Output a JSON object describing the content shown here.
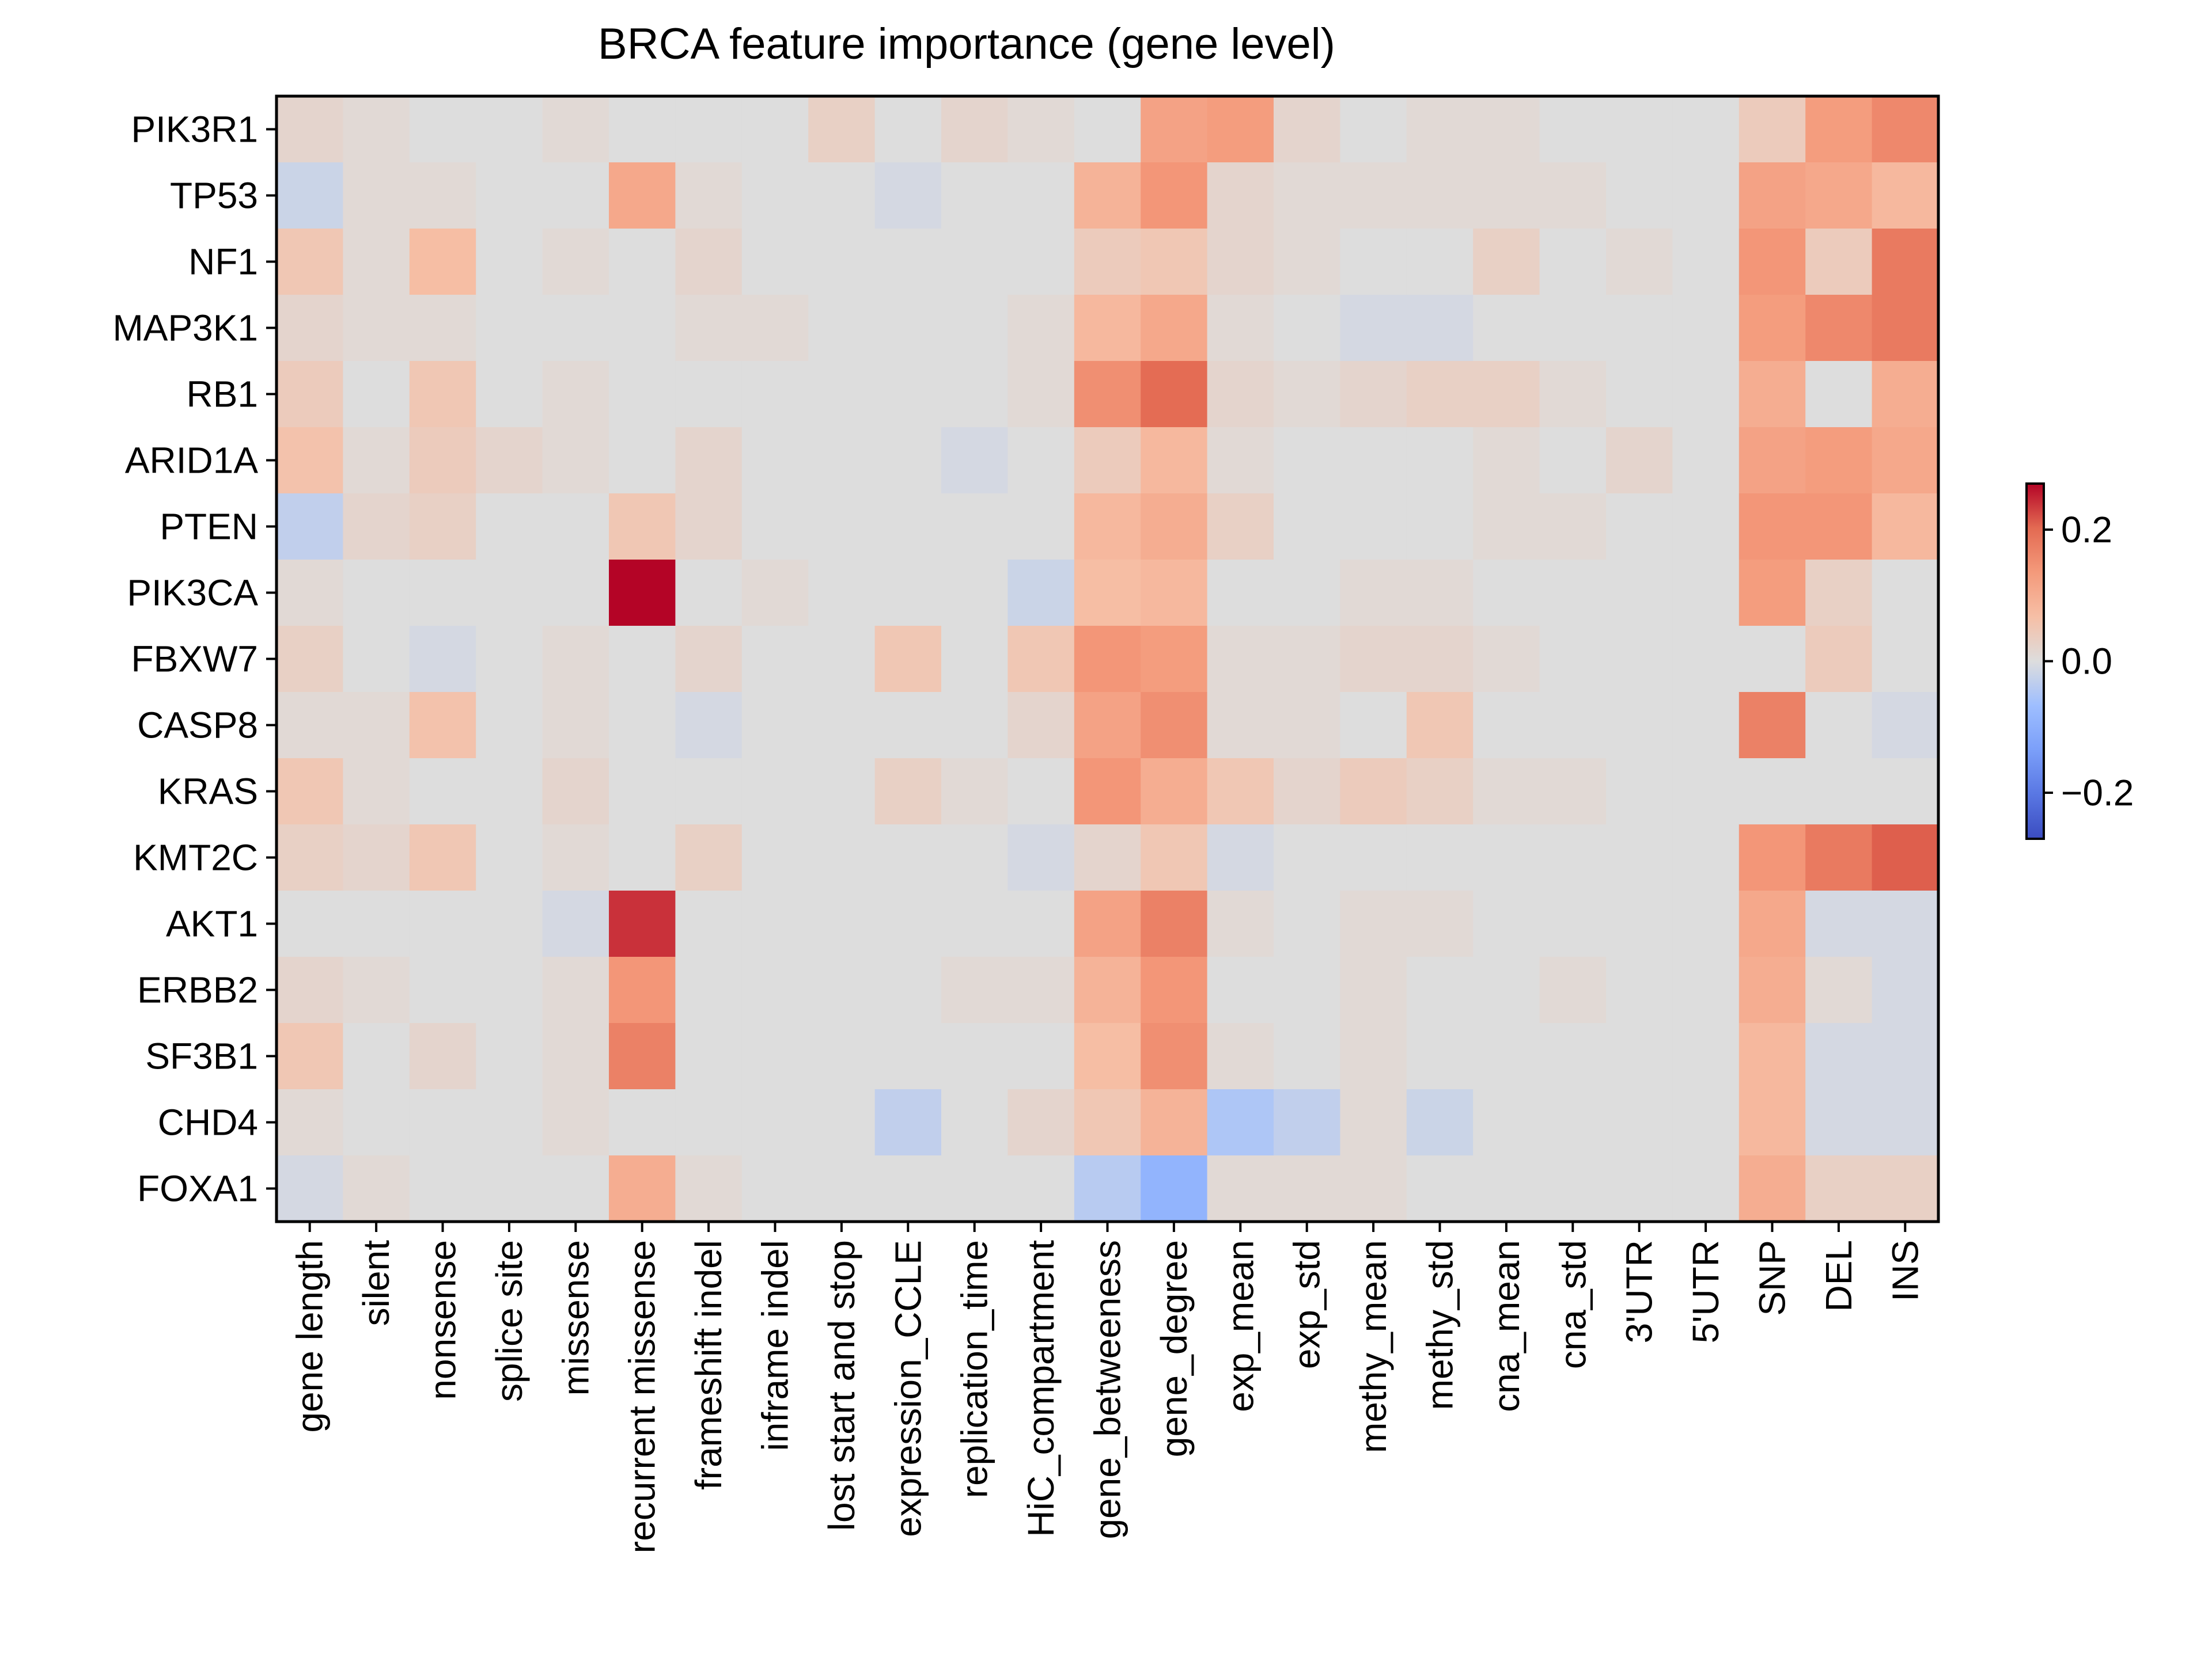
{
  "chart_data": {
    "type": "heatmap",
    "title": "BRCA feature importance (gene level)",
    "xlabel": "",
    "ylabel": "",
    "rows": [
      "PIK3R1",
      "TP53",
      "NF1",
      "MAP3K1",
      "RB1",
      "ARID1A",
      "PTEN",
      "PIK3CA",
      "FBXW7",
      "CASP8",
      "KRAS",
      "KMT2C",
      "AKT1",
      "ERBB2",
      "SF3B1",
      "CHD4",
      "FOXA1"
    ],
    "columns": [
      "gene length",
      "silent",
      "nonsense",
      "splice site",
      "missense",
      "recurrent missense",
      "frameshift indel",
      "inframe indel",
      "lost start and stop",
      "expression_CCLE",
      "replication_time",
      "HiC_compartment",
      "gene_betweeness",
      "gene_degree",
      "exp_mean",
      "exp_std",
      "methy_mean",
      "methy_std",
      "cna_mean",
      "cna_std",
      "3'UTR",
      "5'UTR",
      "SNP",
      "DEL",
      "INS"
    ],
    "values": [
      [
        0.02,
        0.01,
        0.0,
        0.0,
        0.01,
        0.0,
        0.0,
        0.0,
        0.03,
        0.0,
        0.02,
        0.01,
        0.0,
        0.12,
        0.13,
        0.02,
        0.0,
        0.01,
        0.01,
        0.0,
        0.0,
        0.0,
        0.04,
        0.13,
        0.16
      ],
      [
        -0.02,
        0.01,
        0.01,
        0.0,
        0.0,
        0.11,
        0.01,
        0.0,
        0.0,
        -0.01,
        0.0,
        0.0,
        0.09,
        0.14,
        0.02,
        0.01,
        0.01,
        0.01,
        0.01,
        0.01,
        0.0,
        0.0,
        0.12,
        0.11,
        0.08
      ],
      [
        0.05,
        0.01,
        0.07,
        0.0,
        0.01,
        0.0,
        0.02,
        0.0,
        0.0,
        0.0,
        0.0,
        0.0,
        0.04,
        0.05,
        0.02,
        0.01,
        0.0,
        0.0,
        0.03,
        0.0,
        0.01,
        0.0,
        0.14,
        0.04,
        0.18
      ],
      [
        0.02,
        0.01,
        0.01,
        0.0,
        0.0,
        0.0,
        0.01,
        0.01,
        0.0,
        0.0,
        0.0,
        0.01,
        0.08,
        0.11,
        0.01,
        0.0,
        -0.01,
        -0.01,
        0.0,
        0.0,
        0.0,
        0.0,
        0.13,
        0.16,
        0.18
      ],
      [
        0.04,
        0.0,
        0.05,
        0.0,
        0.01,
        0.0,
        0.0,
        0.0,
        0.0,
        0.0,
        0.0,
        0.01,
        0.15,
        0.2,
        0.02,
        0.01,
        0.02,
        0.03,
        0.03,
        0.01,
        0.0,
        0.0,
        0.1,
        0.0,
        0.1
      ],
      [
        0.06,
        0.01,
        0.04,
        0.02,
        0.01,
        0.0,
        0.02,
        0.0,
        0.0,
        0.0,
        -0.01,
        0.0,
        0.04,
        0.08,
        0.01,
        0.0,
        0.0,
        0.0,
        0.01,
        0.0,
        0.02,
        0.0,
        0.12,
        0.13,
        0.11
      ],
      [
        -0.03,
        0.02,
        0.03,
        0.0,
        0.0,
        0.05,
        0.02,
        0.0,
        0.0,
        0.0,
        0.0,
        0.0,
        0.08,
        0.1,
        0.03,
        0.0,
        0.0,
        0.0,
        0.01,
        0.01,
        0.0,
        0.0,
        0.14,
        0.14,
        0.08
      ],
      [
        0.01,
        0.0,
        0.0,
        0.0,
        0.0,
        0.27,
        0.0,
        0.01,
        0.0,
        0.0,
        0.0,
        -0.02,
        0.07,
        0.08,
        0.0,
        0.0,
        0.01,
        0.01,
        0.0,
        0.0,
        0.0,
        0.0,
        0.13,
        0.03,
        0.0
      ],
      [
        0.03,
        0.0,
        -0.01,
        0.0,
        0.01,
        0.0,
        0.02,
        0.0,
        0.0,
        0.05,
        0.0,
        0.05,
        0.14,
        0.13,
        0.01,
        0.01,
        0.02,
        0.02,
        0.01,
        0.0,
        0.0,
        0.0,
        0.0,
        0.04,
        0.0
      ],
      [
        0.01,
        0.01,
        0.06,
        0.0,
        0.01,
        0.0,
        -0.01,
        0.0,
        0.0,
        0.0,
        0.0,
        0.02,
        0.12,
        0.15,
        0.01,
        0.01,
        0.0,
        0.05,
        0.0,
        0.0,
        0.0,
        0.0,
        0.17,
        0.0,
        -0.01
      ],
      [
        0.05,
        0.01,
        0.0,
        0.0,
        0.02,
        0.0,
        0.0,
        0.0,
        0.0,
        0.03,
        0.01,
        0.0,
        0.14,
        0.1,
        0.05,
        0.02,
        0.04,
        0.03,
        0.01,
        0.01,
        0.0,
        0.0,
        0.0,
        0.0,
        0.0
      ],
      [
        0.03,
        0.02,
        0.05,
        0.0,
        0.01,
        0.0,
        0.03,
        0.0,
        0.0,
        0.0,
        0.0,
        -0.01,
        0.02,
        0.05,
        -0.01,
        0.0,
        0.0,
        0.0,
        0.0,
        0.0,
        0.0,
        0.0,
        0.14,
        0.18,
        0.21
      ],
      [
        0.0,
        0.0,
        0.0,
        0.0,
        -0.01,
        0.24,
        0.0,
        0.0,
        0.0,
        0.0,
        0.0,
        0.0,
        0.12,
        0.17,
        0.01,
        0.0,
        0.01,
        0.01,
        0.0,
        0.0,
        0.0,
        0.0,
        0.11,
        -0.01,
        -0.01
      ],
      [
        0.02,
        0.01,
        0.0,
        0.0,
        0.01,
        0.14,
        0.0,
        0.0,
        0.0,
        0.0,
        0.01,
        0.01,
        0.09,
        0.14,
        0.0,
        0.0,
        0.01,
        0.0,
        0.0,
        0.01,
        0.0,
        0.0,
        0.1,
        0.01,
        -0.01
      ],
      [
        0.05,
        0.0,
        0.02,
        0.0,
        0.01,
        0.17,
        0.0,
        0.0,
        0.0,
        0.0,
        0.0,
        0.0,
        0.07,
        0.15,
        0.01,
        0.0,
        0.01,
        0.0,
        0.0,
        0.0,
        0.0,
        0.0,
        0.08,
        -0.01,
        -0.01
      ],
      [
        0.01,
        0.0,
        0.0,
        0.0,
        0.01,
        0.0,
        0.0,
        0.0,
        0.0,
        -0.03,
        0.0,
        0.02,
        0.05,
        0.09,
        -0.05,
        -0.03,
        0.01,
        -0.02,
        0.0,
        0.0,
        0.0,
        0.0,
        0.08,
        -0.01,
        -0.01
      ],
      [
        -0.01,
        0.01,
        0.0,
        0.0,
        0.0,
        0.1,
        0.01,
        0.0,
        0.0,
        0.0,
        0.0,
        0.0,
        -0.04,
        -0.09,
        0.01,
        0.01,
        0.01,
        0.0,
        0.0,
        0.0,
        0.0,
        0.0,
        0.1,
        0.03,
        0.03
      ]
    ],
    "colormap": "coolwarm",
    "vmin": -0.27,
    "vmax": 0.27,
    "colorbar": {
      "ticks": [
        0.2,
        0.0,
        -0.2
      ],
      "tick_labels": [
        "0.2",
        "0.0",
        "−0.2"
      ]
    },
    "grid": false,
    "legend": "colorbar right"
  }
}
